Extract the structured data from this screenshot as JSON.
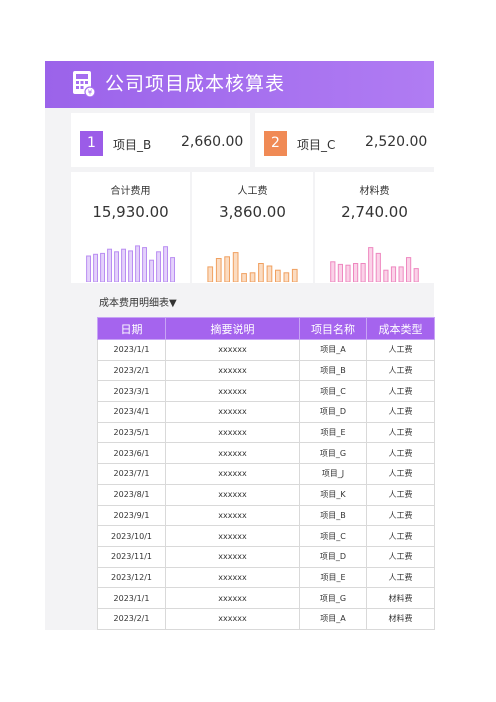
{
  "header": {
    "title": "公司项目成本核算表"
  },
  "kpis": [
    {
      "num": "1",
      "name": "项目_B",
      "value": "2,660.00",
      "color": "#9b5ce8"
    },
    {
      "num": "2",
      "name": "项目_C",
      "value": "2,520.00",
      "color": "#f08a55"
    }
  ],
  "cards": [
    {
      "label": "合计费用",
      "value": "15,930.00",
      "color": "#b98df2",
      "fill": "#e4d2fb",
      "bars": [
        0.62,
        0.66,
        0.68,
        0.78,
        0.72,
        0.78,
        0.74,
        0.86,
        0.82,
        0.52,
        0.72,
        0.84,
        0.58
      ]
    },
    {
      "label": "人工费",
      "value": "3,860.00",
      "color": "#f0a060",
      "fill": "#fbdcc2",
      "bars": [
        0.36,
        0.56,
        0.6,
        0.7,
        0.2,
        0.22,
        0.44,
        0.38,
        0.28,
        0.22,
        0.3
      ]
    },
    {
      "label": "材料费",
      "value": "2,740.00",
      "color": "#ee88c0",
      "fill": "#fbd2e8",
      "bars": [
        0.48,
        0.42,
        0.4,
        0.44,
        0.44,
        0.82,
        0.68,
        0.28,
        0.36,
        0.36,
        0.58,
        0.32
      ]
    }
  ],
  "detail": {
    "title": "成本费用明细表▼",
    "headers": [
      "日期",
      "摘要说明",
      "项目名称",
      "成本类型"
    ],
    "rows": [
      [
        "2023/1/1",
        "xxxxxx",
        "项目_A",
        "人工费"
      ],
      [
        "2023/2/1",
        "xxxxxx",
        "项目_B",
        "人工费"
      ],
      [
        "2023/3/1",
        "xxxxxx",
        "项目_C",
        "人工费"
      ],
      [
        "2023/4/1",
        "xxxxxx",
        "项目_D",
        "人工费"
      ],
      [
        "2023/5/1",
        "xxxxxx",
        "项目_E",
        "人工费"
      ],
      [
        "2023/6/1",
        "xxxxxx",
        "项目_G",
        "人工费"
      ],
      [
        "2023/7/1",
        "xxxxxx",
        "项目_J",
        "人工费"
      ],
      [
        "2023/8/1",
        "xxxxxx",
        "项目_K",
        "人工费"
      ],
      [
        "2023/9/1",
        "xxxxxx",
        "项目_B",
        "人工费"
      ],
      [
        "2023/10/1",
        "xxxxxx",
        "项目_C",
        "人工费"
      ],
      [
        "2023/11/1",
        "xxxxxx",
        "项目_D",
        "人工费"
      ],
      [
        "2023/12/1",
        "xxxxxx",
        "项目_E",
        "人工费"
      ],
      [
        "2023/1/1",
        "xxxxxx",
        "项目_G",
        "材料费"
      ],
      [
        "2023/2/1",
        "xxxxxx",
        "项目_A",
        "材料费"
      ]
    ]
  }
}
